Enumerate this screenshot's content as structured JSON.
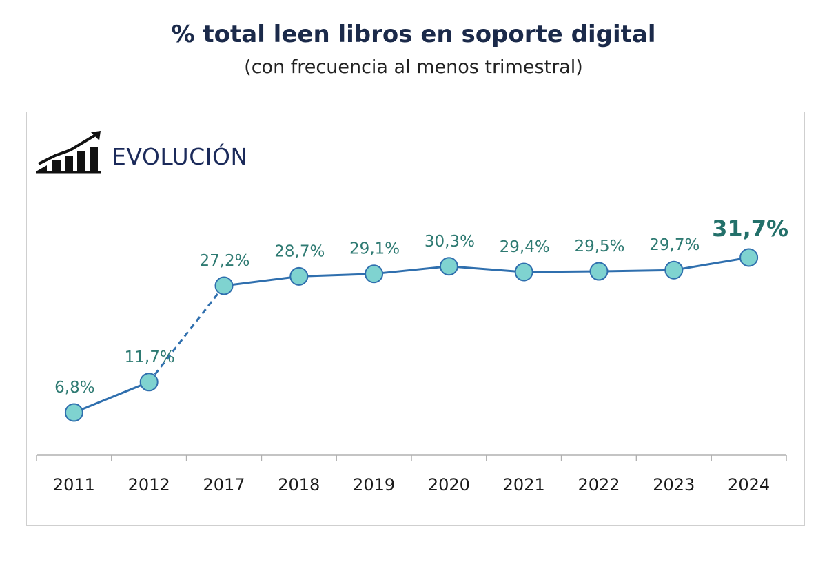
{
  "header": {
    "title": "% total leen libros en soporte digital",
    "subtitle": "(con frecuencia al menos trimestral)"
  },
  "section": {
    "label": "EVOLUCIÓN",
    "icon": "growth-chart-icon"
  },
  "chart_data": {
    "type": "line",
    "title": "% total leen libros en soporte digital",
    "subtitle": "(con frecuencia al menos trimestral)",
    "categories": [
      "2011",
      "2012",
      "2017",
      "2018",
      "2019",
      "2020",
      "2021",
      "2022",
      "2023",
      "2024"
    ],
    "values": [
      6.8,
      11.7,
      27.2,
      28.7,
      29.1,
      30.3,
      29.4,
      29.5,
      29.7,
      31.7
    ],
    "labels": [
      "6,8%",
      "11,7%",
      "27,2%",
      "28,7%",
      "29,1%",
      "30,3%",
      "29,4%",
      "29,5%",
      "29,7%",
      "31,7%"
    ],
    "dashed_segments": [
      [
        1,
        2
      ]
    ],
    "highlight_last": true,
    "xlabel": "",
    "ylabel": "",
    "grid": false,
    "legend": "none",
    "colors": {
      "line": "#2f6fae",
      "marker_fill": "#7fd3d0",
      "marker_stroke": "#2f6fae",
      "label": "#2e7a72",
      "axis": "#b0b0b0"
    }
  }
}
